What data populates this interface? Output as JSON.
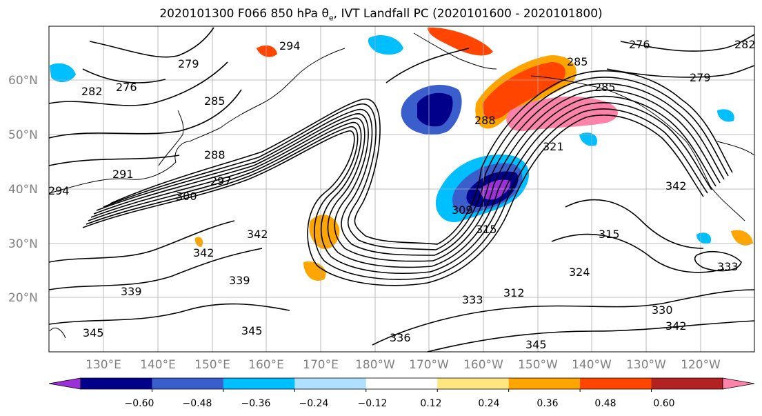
{
  "title_main": "2020101300 F066 850 hPa ",
  "title_theta": "θ",
  "title_sub": "e",
  "title_rest": ", IVT Landfall PC (2020101600 - 2020101800)",
  "map": {
    "lat_labels": [
      "60°N",
      "50°N",
      "40°N",
      "30°N",
      "20°N"
    ],
    "lon_labels": [
      "130°E",
      "140°E",
      "150°E",
      "160°E",
      "170°E",
      "180°W",
      "170°W",
      "160°W",
      "150°W",
      "140°W",
      "130°W",
      "120°W"
    ],
    "contour_labels": [
      "294",
      "279",
      "282",
      "276",
      "285",
      "288",
      "291",
      "294",
      "300",
      "297",
      "342",
      "342",
      "339",
      "339",
      "345",
      "345",
      "333",
      "336",
      "309",
      "315",
      "321",
      "285",
      "288",
      "276",
      "279",
      "285",
      "282",
      "342",
      "333",
      "330",
      "342",
      "345",
      "315",
      "312",
      "324"
    ]
  },
  "colorbar": {
    "ticks": [
      "−0.60",
      "−0.48",
      "−0.36",
      "−0.24",
      "−0.12",
      "0.12",
      "0.24",
      "0.36",
      "0.48",
      "0.60"
    ],
    "colors": [
      "#9b30d9",
      "#00008b",
      "#3a5fcd",
      "#00bfff",
      "#b0e0ff",
      "#ffffff",
      "#ffe680",
      "#ffa500",
      "#ff4500",
      "#b22222",
      "#ff82ab"
    ]
  }
}
